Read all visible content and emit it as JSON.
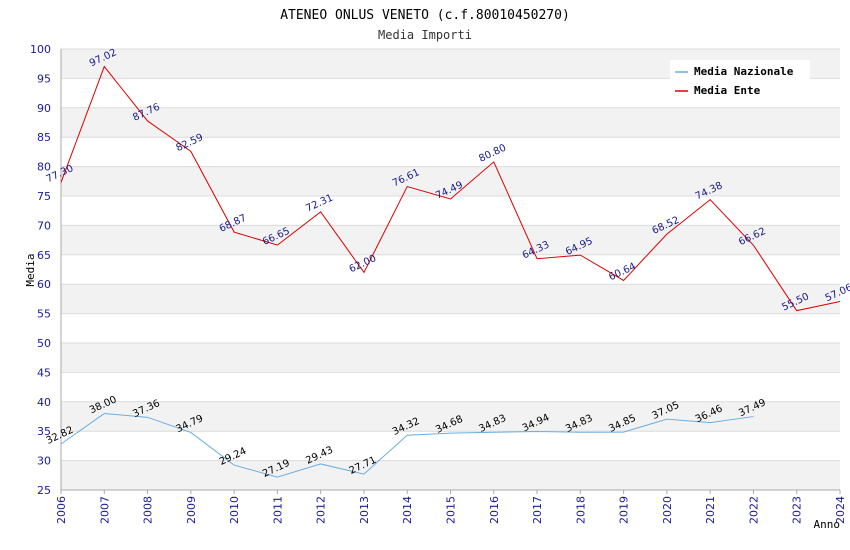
{
  "chart_data": {
    "type": "line",
    "title": "ATENEO ONLUS VENETO (c.f.80010450270)",
    "subtitle": "Media Importi",
    "xlabel": "Anno",
    "ylabel": "Media",
    "ylim": [
      25,
      100
    ],
    "ytick_step": 5,
    "categories": [
      "2006",
      "2007",
      "2008",
      "2009",
      "2010",
      "2011",
      "2012",
      "2013",
      "2014",
      "2015",
      "2016",
      "2017",
      "2018",
      "2019",
      "2020",
      "2021",
      "2022",
      "2023",
      "2024"
    ],
    "series": [
      {
        "name": "Media Nazionale",
        "color": "#6aaee0",
        "values": [
          32.82,
          38.0,
          37.36,
          34.79,
          29.24,
          27.19,
          29.43,
          27.71,
          34.32,
          34.68,
          34.83,
          34.94,
          34.83,
          34.85,
          37.05,
          36.46,
          37.49,
          null,
          null
        ],
        "labels": [
          "32.82",
          "38.00",
          "37.36",
          "34.79",
          "29.24",
          "27.19",
          "29.43",
          "27.71",
          "34.32",
          "34.68",
          "34.83",
          "34.94",
          "34.83",
          "34.85",
          "37.05",
          "36.46",
          "37.49",
          null,
          null
        ]
      },
      {
        "name": "Media Ente",
        "color": "#dd0000",
        "values": [
          77.3,
          97.02,
          87.76,
          82.59,
          68.87,
          66.65,
          72.31,
          62.0,
          76.61,
          74.49,
          80.8,
          64.33,
          64.95,
          60.64,
          68.52,
          74.38,
          66.62,
          55.5,
          57.06
        ],
        "labels": [
          "77.30",
          "97.02",
          "87.76",
          "82.59",
          "68.87",
          "66.65",
          "72.31",
          "62.00",
          "76.61",
          "74.49",
          "80.80",
          "64.33",
          "64.95",
          "60.64",
          "68.52",
          "74.38",
          "66.62",
          "55.50",
          "57.06"
        ]
      }
    ],
    "legend_position": "top-right",
    "grid": true
  }
}
